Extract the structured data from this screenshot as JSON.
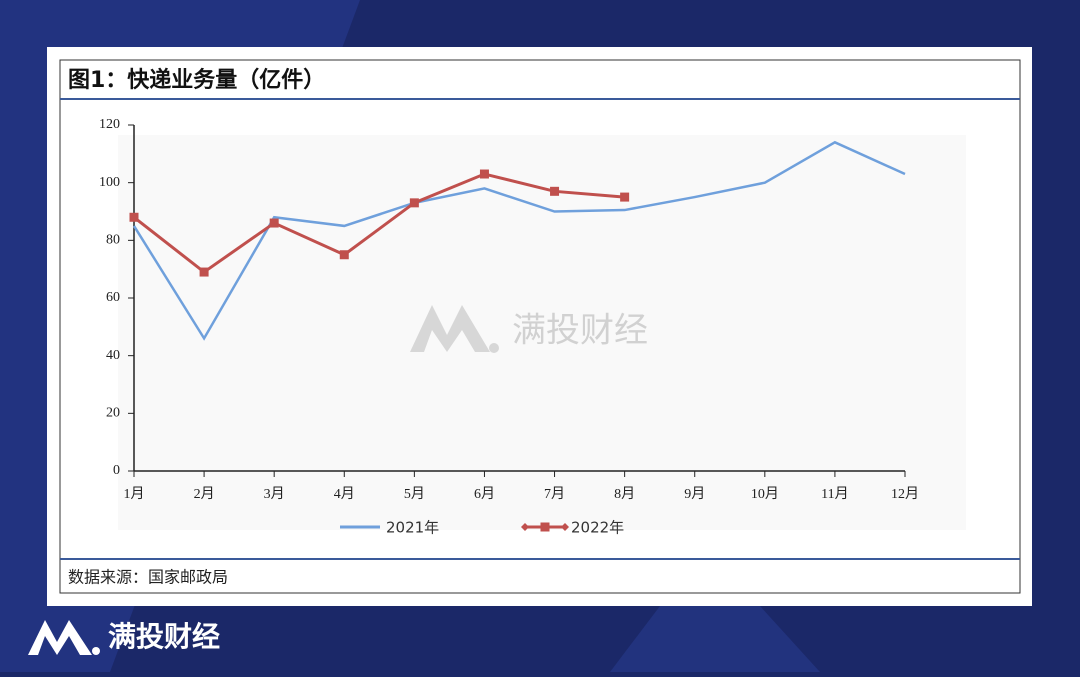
{
  "chart_data": {
    "type": "line",
    "title": "图1：快递业务量（亿件）",
    "categories": [
      "1月",
      "2月",
      "3月",
      "4月",
      "5月",
      "6月",
      "7月",
      "8月",
      "9月",
      "10月",
      "11月",
      "12月"
    ],
    "series": [
      {
        "name": "2021年",
        "color": "#6fa0dc",
        "values": [
          85,
          46,
          88,
          85,
          93,
          98,
          90,
          90.5,
          95,
          100,
          114,
          103
        ]
      },
      {
        "name": "2022年",
        "color": "#c0504d",
        "values": [
          88,
          69,
          86,
          75,
          93,
          103,
          97,
          95,
          null,
          null,
          null,
          null
        ]
      }
    ],
    "ylim": [
      0,
      120
    ],
    "yticks": [
      0,
      20,
      40,
      60,
      80,
      100,
      120
    ],
    "grid": false,
    "legend": "bottom",
    "source": "数据来源：国家邮政局"
  },
  "brand": "满投财经"
}
